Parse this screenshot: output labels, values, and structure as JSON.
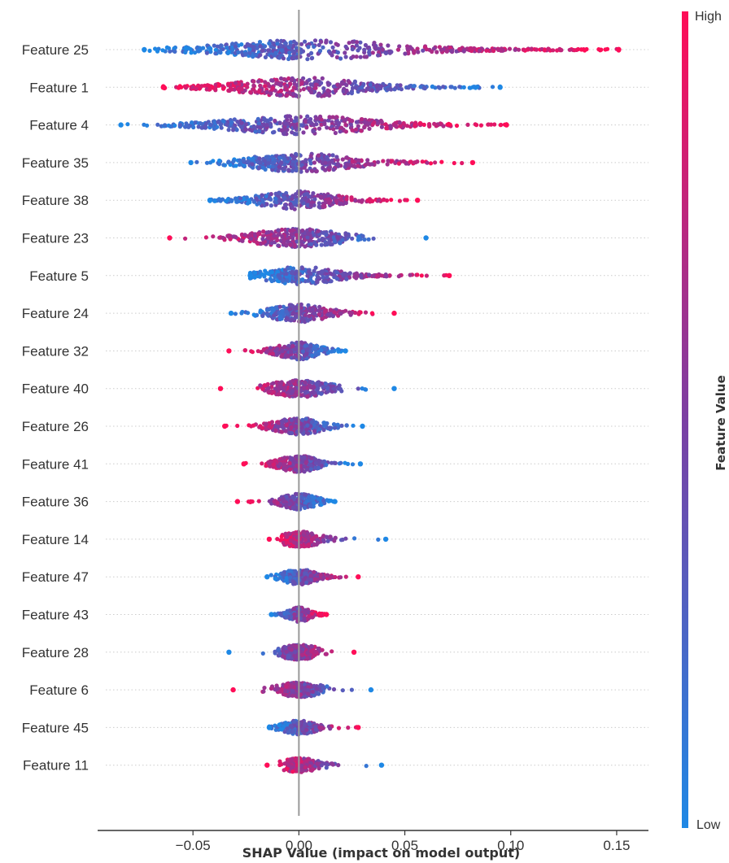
{
  "chart_data": {
    "type": "scatter",
    "subtype": "shap-beeswarm-summary",
    "title": "",
    "xlabel": "SHAP Value (impact on model output)",
    "ylabel": "",
    "xlim": [
      -0.095,
      0.165
    ],
    "x_ticks": [
      -0.05,
      0.0,
      0.05,
      0.1,
      0.15
    ],
    "x_tick_labels": [
      "−0.05",
      "0.00",
      "0.05",
      "0.10",
      "0.15"
    ],
    "grid": "dotted horizontal row guides",
    "zero_line": true,
    "colorbar": {
      "title": "Feature Value",
      "high_label": "High",
      "low_label": "Low",
      "high_color": "#ff0d57",
      "low_color": "#1e88e5",
      "placement": "right"
    },
    "features": [
      {
        "name": "Feature 25",
        "min": -0.073,
        "max": 0.151,
        "low_side": "negative",
        "lower_tail": [
          -0.033,
          0.0
        ],
        "upper_tail": [
          0.0,
          0.09
        ]
      },
      {
        "name": "Feature 1",
        "min": -0.064,
        "max": 0.095,
        "low_side": "positive",
        "lower_tail": [
          -0.03,
          0.0
        ],
        "upper_tail": [
          0.0,
          0.045
        ]
      },
      {
        "name": "Feature 4",
        "min": -0.084,
        "max": 0.098,
        "low_side": "negative",
        "lower_tail": [
          -0.035,
          0.0
        ],
        "upper_tail": [
          0.0,
          0.045
        ]
      },
      {
        "name": "Feature 35",
        "min": -0.051,
        "max": 0.082,
        "low_side": "negative",
        "lower_tail": [
          -0.02,
          0.0
        ],
        "upper_tail": [
          0.0,
          0.03
        ]
      },
      {
        "name": "Feature 38",
        "min": -0.042,
        "max": 0.056,
        "low_side": "negative",
        "lower_tail": [
          -0.025,
          0.0
        ],
        "upper_tail": [
          0.0,
          0.02
        ]
      },
      {
        "name": "Feature 23",
        "min": -0.061,
        "max": 0.06,
        "low_side": "positive",
        "lower_tail": [
          -0.02,
          0.0
        ],
        "upper_tail": [
          0.0,
          0.015
        ]
      },
      {
        "name": "Feature 5",
        "min": -0.023,
        "max": 0.071,
        "low_side": "negative",
        "lower_tail": [
          -0.015,
          0.0
        ],
        "upper_tail": [
          0.0,
          0.03
        ]
      },
      {
        "name": "Feature 24",
        "min": -0.032,
        "max": 0.045,
        "low_side": "negative",
        "lower_tail": [
          -0.012,
          0.0
        ],
        "upper_tail": [
          0.0,
          0.015
        ]
      },
      {
        "name": "Feature 32",
        "min": -0.033,
        "max": 0.022,
        "low_side": "positive",
        "lower_tail": [
          -0.01,
          0.0
        ],
        "upper_tail": [
          0.0,
          0.01
        ]
      },
      {
        "name": "Feature 40",
        "min": -0.037,
        "max": 0.045,
        "low_side": "positive",
        "lower_tail": [
          -0.01,
          0.0
        ],
        "upper_tail": [
          0.0,
          0.01
        ]
      },
      {
        "name": "Feature 26",
        "min": -0.035,
        "max": 0.03,
        "low_side": "positive",
        "lower_tail": [
          -0.01,
          0.0
        ],
        "upper_tail": [
          0.0,
          0.01
        ]
      },
      {
        "name": "Feature 41",
        "min": -0.026,
        "max": 0.029,
        "low_side": "positive",
        "lower_tail": [
          -0.008,
          0.0
        ],
        "upper_tail": [
          0.0,
          0.008
        ]
      },
      {
        "name": "Feature 36",
        "min": -0.029,
        "max": 0.017,
        "low_side": "positive",
        "lower_tail": [
          -0.006,
          0.0
        ],
        "upper_tail": [
          0.0,
          0.007
        ]
      },
      {
        "name": "Feature 14",
        "min": -0.014,
        "max": 0.041,
        "low_side": "positive",
        "lower_tail": [
          -0.004,
          0.0
        ],
        "upper_tail": [
          0.0,
          0.008
        ]
      },
      {
        "name": "Feature 47",
        "min": -0.015,
        "max": 0.028,
        "low_side": "negative",
        "lower_tail": [
          -0.006,
          0.0
        ],
        "upper_tail": [
          0.0,
          0.008
        ]
      },
      {
        "name": "Feature 43",
        "min": -0.013,
        "max": 0.013,
        "low_side": "negative",
        "lower_tail": [
          -0.005,
          0.0
        ],
        "upper_tail": [
          0.0,
          0.006
        ]
      },
      {
        "name": "Feature 28",
        "min": -0.033,
        "max": 0.026,
        "low_side": "negative",
        "lower_tail": [
          -0.006,
          0.0
        ],
        "upper_tail": [
          0.0,
          0.006
        ]
      },
      {
        "name": "Feature 6",
        "min": -0.031,
        "max": 0.034,
        "low_side": "positive",
        "lower_tail": [
          -0.006,
          0.0
        ],
        "upper_tail": [
          0.0,
          0.006
        ]
      },
      {
        "name": "Feature 45",
        "min": -0.014,
        "max": 0.028,
        "low_side": "negative",
        "lower_tail": [
          -0.006,
          0.0
        ],
        "upper_tail": [
          0.0,
          0.008
        ]
      },
      {
        "name": "Feature 11",
        "min": -0.015,
        "max": 0.039,
        "low_side": "positive",
        "lower_tail": [
          -0.004,
          0.0
        ],
        "upper_tail": [
          0.0,
          0.008
        ]
      }
    ]
  }
}
